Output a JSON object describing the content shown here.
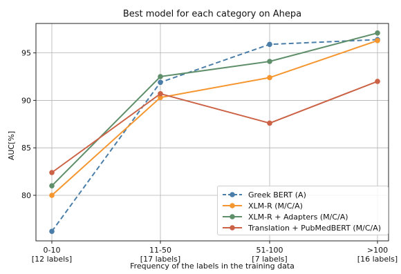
{
  "chart_data": {
    "type": "line",
    "title": "Best model for each category on Ahepa",
    "xlabel": "Frequency of the labels in the training data",
    "ylabel": "AUC[%]",
    "categories": [
      "0-10",
      "11-50",
      "51-100",
      ">100"
    ],
    "category_sublabels": [
      "[12 labels]",
      "[17 labels]",
      "[7 labels]",
      "[16 labels]"
    ],
    "yticks": [
      80,
      85,
      90,
      95
    ],
    "ylim": [
      75.2,
      98.1
    ],
    "grid": true,
    "legend_position": "bottom-right",
    "series": [
      {
        "name": "Greek BERT (A)",
        "color": "#4a7ea8",
        "dashed": true,
        "values": [
          76.2,
          91.9,
          95.9,
          96.4
        ]
      },
      {
        "name": "XLM-R (M/C/A)",
        "color": "#f5952e",
        "dashed": false,
        "values": [
          80.0,
          90.3,
          92.4,
          96.3
        ]
      },
      {
        "name": "XLM-R + Adapters (M/C/A)",
        "color": "#5f8f6a",
        "dashed": false,
        "values": [
          81.0,
          92.5,
          94.1,
          97.1
        ]
      },
      {
        "name": "Translation + PubMedBERT (M/C/A)",
        "color": "#cc6245",
        "dashed": false,
        "values": [
          82.4,
          90.7,
          87.6,
          92.0
        ]
      }
    ]
  }
}
